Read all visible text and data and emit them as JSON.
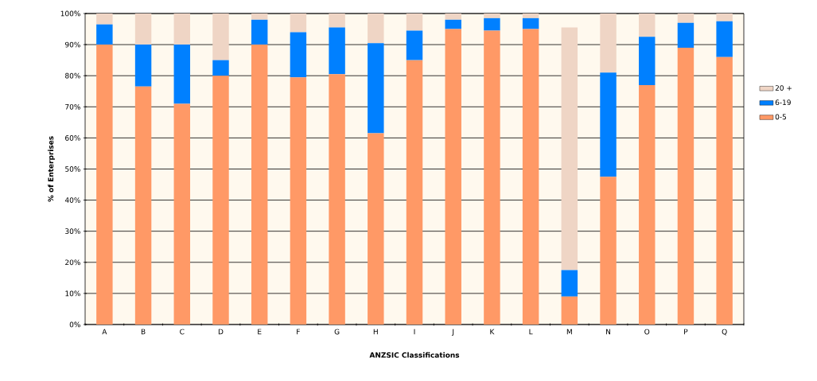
{
  "chart_data": {
    "type": "bar",
    "stacked": true,
    "xlabel": "ANZSIC Classifications",
    "ylabel": "% of Enterprises",
    "categories": [
      "A",
      "B",
      "C",
      "D",
      "E",
      "F",
      "G",
      "H",
      "I",
      "J",
      "K",
      "L",
      "M",
      "N",
      "O",
      "P",
      "Q"
    ],
    "series": [
      {
        "name": "0-5",
        "color": "#ff9966",
        "values": [
          90,
          76.5,
          71,
          80,
          90,
          79.5,
          80.5,
          61.5,
          85,
          95,
          94.5,
          95,
          9,
          47.5,
          77,
          89,
          86
        ]
      },
      {
        "name": "6-19",
        "color": "#0080ff",
        "values": [
          6.5,
          13.5,
          19,
          5,
          8,
          14.5,
          15,
          29,
          9.5,
          3,
          4,
          3.5,
          8.5,
          33.5,
          15.5,
          8,
          11.5
        ]
      },
      {
        "name": "20 +",
        "color": "#efd5c5",
        "values": [
          3.5,
          10,
          10,
          15,
          2,
          6,
          4.5,
          9.5,
          5.5,
          2,
          1.5,
          1.5,
          78,
          19,
          7.5,
          3,
          2.5
        ]
      }
    ],
    "ylim": [
      0,
      100
    ],
    "yticks": [
      {
        "value": 0,
        "label": "0%"
      },
      {
        "value": 10,
        "label": "10%"
      },
      {
        "value": 20,
        "label": "20%"
      },
      {
        "value": 30,
        "label": "30%"
      },
      {
        "value": 40,
        "label": "40%"
      },
      {
        "value": 50,
        "label": "50%"
      },
      {
        "value": 60,
        "label": "60%"
      },
      {
        "value": 70,
        "label": "70%"
      },
      {
        "value": 80,
        "label": "80%"
      },
      {
        "value": 90,
        "label": "90%"
      },
      {
        "value": 100,
        "label": "100%"
      }
    ],
    "grid": "y",
    "legend": "right"
  }
}
